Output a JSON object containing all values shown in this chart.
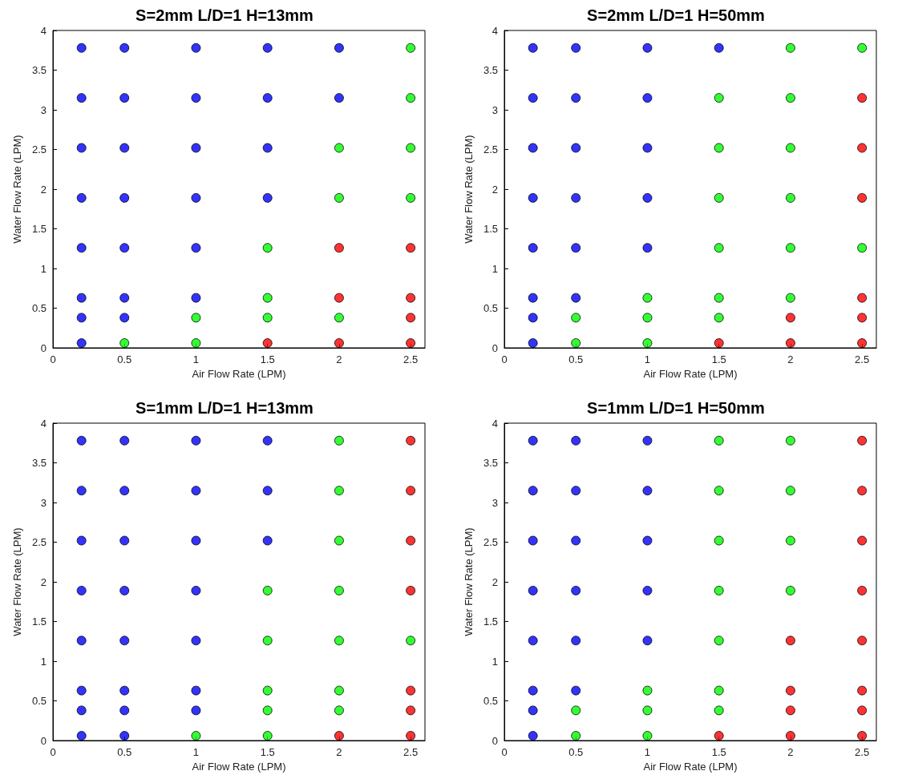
{
  "chart_data": [
    {
      "type": "scatter",
      "title": "S=2mm L/D=1 H=13mm",
      "xlabel": "Air Flow Rate (LPM)",
      "ylabel": "Water Flow Rate (LPM)",
      "xlim": [
        0,
        2.6
      ],
      "xticks": [
        0,
        0.5,
        1,
        1.5,
        2,
        2.5
      ],
      "ylim": [
        0,
        4
      ],
      "yticks": [
        0,
        0.5,
        1,
        1.5,
        2,
        2.5,
        3,
        3.5,
        4
      ],
      "grid": false,
      "marker": "circle",
      "series": [
        {
          "color": "#0000ff",
          "x": [
            0.2,
            0.5,
            1,
            1.5,
            2,
            0.2,
            0.5,
            1,
            1.5,
            2,
            0.2,
            0.5,
            1,
            1.5,
            0.2,
            0.5,
            1,
            1.5,
            0.2,
            0.5,
            1,
            0.2,
            0.5,
            1,
            0.2,
            0.5,
            0.2
          ],
          "values": [
            3.78,
            3.78,
            3.78,
            3.78,
            3.78,
            3.15,
            3.15,
            3.15,
            3.15,
            3.15,
            2.52,
            2.52,
            2.52,
            2.52,
            1.89,
            1.89,
            1.89,
            1.89,
            1.26,
            1.26,
            1.26,
            0.63,
            0.63,
            0.63,
            0.38,
            0.38,
            0.06
          ]
        },
        {
          "color": "#00ff00",
          "x": [
            2.5,
            2.5,
            2,
            2.5,
            2,
            2.5,
            1.5,
            1.5,
            1,
            1.5,
            2,
            0.5,
            1
          ],
          "values": [
            3.78,
            3.15,
            2.52,
            2.52,
            1.89,
            1.89,
            1.26,
            0.63,
            0.38,
            0.38,
            0.38,
            0.06,
            0.06
          ]
        },
        {
          "color": "#ff0000",
          "x": [
            2,
            2.5,
            2,
            2.5,
            2.5,
            1.5,
            2,
            2.5
          ],
          "values": [
            1.26,
            1.26,
            0.63,
            0.63,
            0.38,
            0.06,
            0.06,
            0.06
          ]
        }
      ]
    },
    {
      "type": "scatter",
      "title": "S=2mm L/D=1 H=50mm",
      "xlabel": "Air Flow Rate (LPM)",
      "ylabel": "Water Flow Rate (LPM)",
      "xlim": [
        0,
        2.6
      ],
      "xticks": [
        0,
        0.5,
        1,
        1.5,
        2,
        2.5
      ],
      "ylim": [
        0,
        4
      ],
      "yticks": [
        0,
        0.5,
        1,
        1.5,
        2,
        2.5,
        3,
        3.5,
        4
      ],
      "grid": false,
      "marker": "circle",
      "series": [
        {
          "color": "#0000ff",
          "x": [
            0.2,
            0.5,
            1,
            1.5,
            0.2,
            0.5,
            1,
            0.2,
            0.5,
            1,
            0.2,
            0.5,
            1,
            0.2,
            0.5,
            1,
            0.2,
            0.5,
            0.2,
            0.2
          ],
          "values": [
            3.78,
            3.78,
            3.78,
            3.78,
            3.15,
            3.15,
            3.15,
            2.52,
            2.52,
            2.52,
            1.89,
            1.89,
            1.89,
            1.26,
            1.26,
            1.26,
            0.63,
            0.63,
            0.38,
            0.06
          ]
        },
        {
          "color": "#00ff00",
          "x": [
            2,
            2.5,
            1.5,
            2,
            1.5,
            2,
            1.5,
            2,
            1.5,
            2,
            2.5,
            1,
            1.5,
            2,
            0.5,
            1,
            1.5,
            0.5,
            1
          ],
          "values": [
            3.78,
            3.78,
            3.15,
            3.15,
            2.52,
            2.52,
            1.89,
            1.89,
            1.26,
            1.26,
            1.26,
            0.63,
            0.63,
            0.63,
            0.38,
            0.38,
            0.38,
            0.06,
            0.06
          ]
        },
        {
          "color": "#ff0000",
          "x": [
            2.5,
            2.5,
            2.5,
            2.5,
            2,
            2.5,
            1.5,
            2,
            2.5
          ],
          "values": [
            3.15,
            2.52,
            1.89,
            0.63,
            0.38,
            0.38,
            0.06,
            0.06,
            0.06
          ]
        }
      ]
    },
    {
      "type": "scatter",
      "title": "S=1mm L/D=1 H=13mm",
      "xlabel": "Air Flow Rate (LPM)",
      "ylabel": "Water Flow Rate (LPM)",
      "xlim": [
        0,
        2.6
      ],
      "xticks": [
        0,
        0.5,
        1,
        1.5,
        2,
        2.5
      ],
      "ylim": [
        0,
        4
      ],
      "yticks": [
        0,
        0.5,
        1,
        1.5,
        2,
        2.5,
        3,
        3.5,
        4
      ],
      "grid": false,
      "marker": "circle",
      "series": [
        {
          "color": "#0000ff",
          "x": [
            0.2,
            0.5,
            1,
            1.5,
            0.2,
            0.5,
            1,
            1.5,
            0.2,
            0.5,
            1,
            1.5,
            0.2,
            0.5,
            1,
            0.2,
            0.5,
            1,
            0.2,
            0.5,
            1,
            0.2,
            0.5,
            1,
            0.2,
            0.5
          ],
          "values": [
            3.78,
            3.78,
            3.78,
            3.78,
            3.15,
            3.15,
            3.15,
            3.15,
            2.52,
            2.52,
            2.52,
            2.52,
            1.89,
            1.89,
            1.89,
            1.26,
            1.26,
            1.26,
            0.63,
            0.63,
            0.63,
            0.38,
            0.38,
            0.38,
            0.06,
            0.06
          ]
        },
        {
          "color": "#00ff00",
          "x": [
            2,
            2,
            2,
            1.5,
            2,
            1.5,
            2,
            2.5,
            1.5,
            2,
            1.5,
            2,
            1,
            1.5
          ],
          "values": [
            3.78,
            3.15,
            2.52,
            1.89,
            1.89,
            1.26,
            1.26,
            1.26,
            0.63,
            0.63,
            0.38,
            0.38,
            0.06,
            0.06
          ]
        },
        {
          "color": "#ff0000",
          "x": [
            2.5,
            2.5,
            2.5,
            2.5,
            2.5,
            2.5,
            2,
            2.5
          ],
          "values": [
            3.78,
            3.15,
            2.52,
            1.89,
            0.63,
            0.38,
            0.06,
            0.06
          ]
        }
      ]
    },
    {
      "type": "scatter",
      "title": "S=1mm L/D=1 H=50mm",
      "xlabel": "Air Flow Rate (LPM)",
      "ylabel": "Water Flow Rate (LPM)",
      "xlim": [
        0,
        2.6
      ],
      "xticks": [
        0,
        0.5,
        1,
        1.5,
        2,
        2.5
      ],
      "ylim": [
        0,
        4
      ],
      "yticks": [
        0,
        0.5,
        1,
        1.5,
        2,
        2.5,
        3,
        3.5,
        4
      ],
      "grid": false,
      "marker": "circle",
      "series": [
        {
          "color": "#0000ff",
          "x": [
            0.2,
            0.5,
            1,
            0.2,
            0.5,
            1,
            0.2,
            0.5,
            1,
            0.2,
            0.5,
            1,
            0.2,
            0.5,
            1,
            0.2,
            0.5,
            0.2,
            0.2
          ],
          "values": [
            3.78,
            3.78,
            3.78,
            3.15,
            3.15,
            3.15,
            2.52,
            2.52,
            2.52,
            1.89,
            1.89,
            1.89,
            1.26,
            1.26,
            1.26,
            0.63,
            0.63,
            0.38,
            0.06
          ]
        },
        {
          "color": "#00ff00",
          "x": [
            1.5,
            2,
            1.5,
            2,
            1.5,
            2,
            1.5,
            2,
            1.5,
            1,
            1.5,
            0.5,
            1,
            1.5,
            0.5,
            1
          ],
          "values": [
            3.78,
            3.78,
            3.15,
            3.15,
            2.52,
            2.52,
            1.89,
            1.89,
            1.26,
            0.63,
            0.63,
            0.38,
            0.38,
            0.38,
            0.06,
            0.06
          ]
        },
        {
          "color": "#ff0000",
          "x": [
            2.5,
            2.5,
            2.5,
            2.5,
            2,
            2.5,
            2,
            2.5,
            2,
            2.5,
            1.5,
            2,
            2.5
          ],
          "values": [
            3.78,
            3.15,
            2.52,
            1.89,
            1.26,
            1.26,
            0.63,
            0.63,
            0.38,
            0.38,
            0.06,
            0.06,
            0.06
          ]
        }
      ]
    }
  ]
}
